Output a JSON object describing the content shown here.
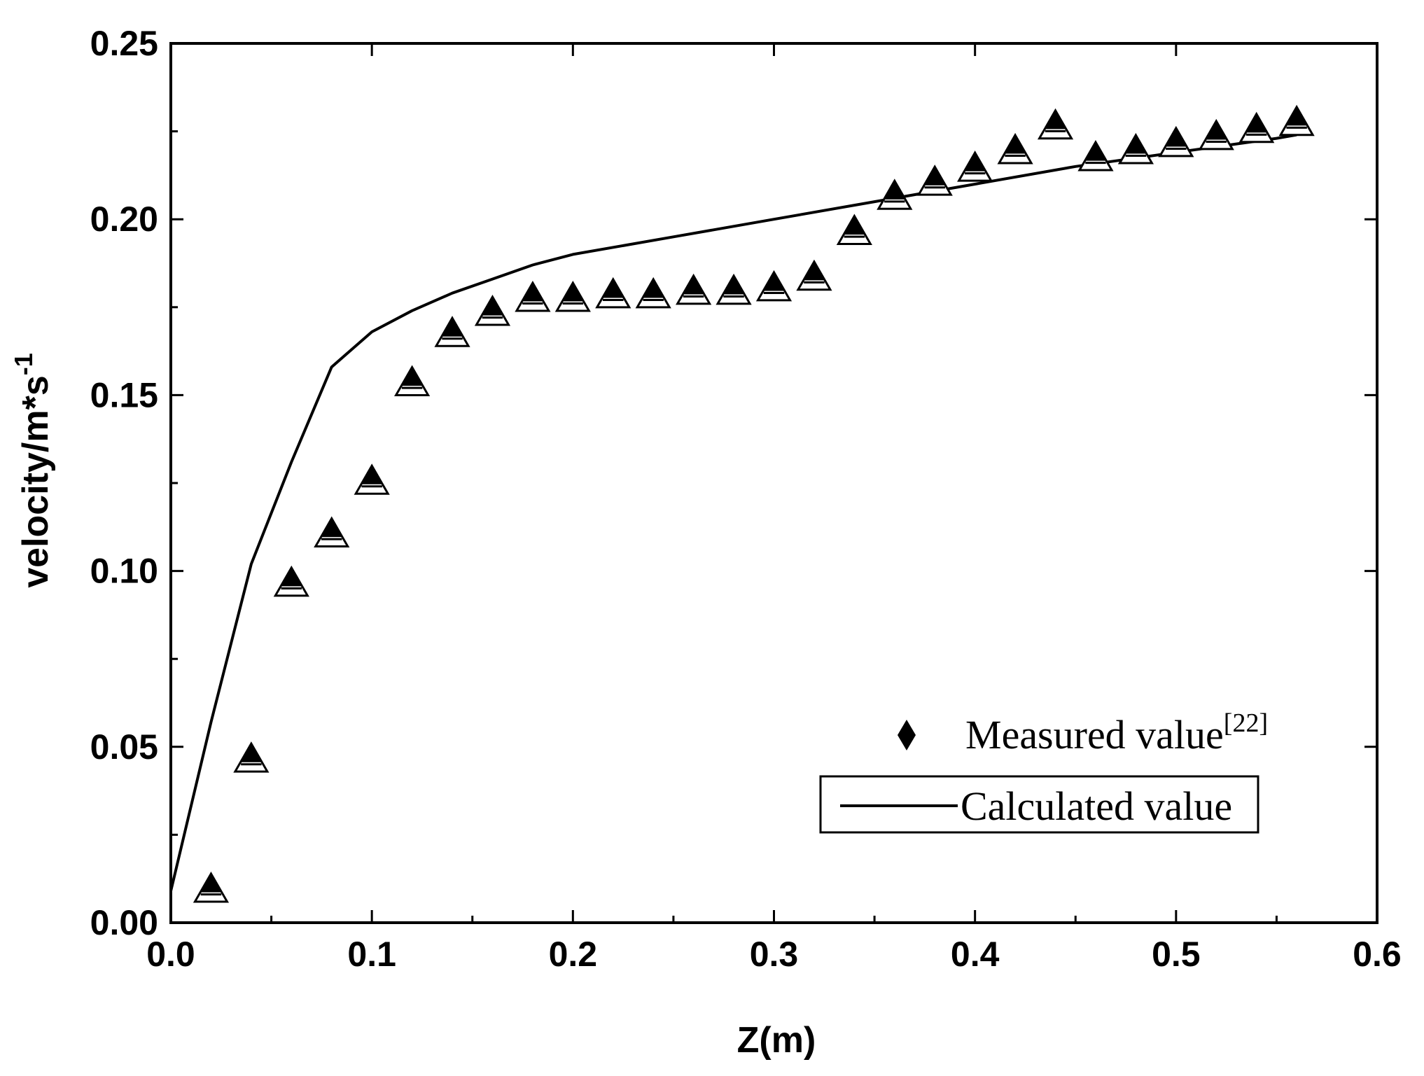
{
  "chart_data": {
    "type": "scatter",
    "xlabel": "Z(m)",
    "ylabel": "velocity/m*s",
    "ylabel_superscript": "-1",
    "xlim": [
      0.0,
      0.6
    ],
    "ylim": [
      0.0,
      0.25
    ],
    "xticks": [
      0.0,
      0.1,
      0.2,
      0.3,
      0.4,
      0.5,
      0.6
    ],
    "xtick_labels": [
      "0.0",
      "0.1",
      "0.2",
      "0.3",
      "0.4",
      "0.5",
      "0.6"
    ],
    "yticks": [
      0.0,
      0.05,
      0.1,
      0.15,
      0.2,
      0.25
    ],
    "ytick_labels": [
      "0.00",
      "0.05",
      "0.10",
      "0.15",
      "0.20",
      "0.25"
    ],
    "grid": false,
    "legend": {
      "position": "bottom-right",
      "entries": [
        {
          "label": "Measured value",
          "superscript": "[22]",
          "marker": "diamond-icon"
        },
        {
          "label": "Calculated value",
          "marker": "line"
        }
      ]
    },
    "series": [
      {
        "name": "Measured value",
        "kind": "scatter",
        "marker": "half-filled-triangle",
        "x": [
          0.02,
          0.04,
          0.06,
          0.08,
          0.1,
          0.12,
          0.14,
          0.16,
          0.18,
          0.2,
          0.22,
          0.24,
          0.26,
          0.28,
          0.3,
          0.32,
          0.34,
          0.36,
          0.38,
          0.4,
          0.42,
          0.44,
          0.46,
          0.48,
          0.5,
          0.52,
          0.54,
          0.56
        ],
        "y": [
          0.009,
          0.046,
          0.096,
          0.11,
          0.125,
          0.153,
          0.167,
          0.173,
          0.177,
          0.177,
          0.178,
          0.178,
          0.179,
          0.179,
          0.18,
          0.183,
          0.196,
          0.206,
          0.21,
          0.214,
          0.219,
          0.226,
          0.217,
          0.219,
          0.221,
          0.223,
          0.225,
          0.227
        ]
      },
      {
        "name": "Calculated value",
        "kind": "line",
        "x": [
          0.0,
          0.02,
          0.04,
          0.06,
          0.08,
          0.1,
          0.12,
          0.14,
          0.16,
          0.18,
          0.2,
          0.25,
          0.3,
          0.35,
          0.4,
          0.45,
          0.5,
          0.55,
          0.56
        ],
        "y": [
          0.009,
          0.057,
          0.102,
          0.131,
          0.158,
          0.168,
          0.174,
          0.179,
          0.183,
          0.187,
          0.19,
          0.195,
          0.2,
          0.205,
          0.21,
          0.215,
          0.219,
          0.223,
          0.224
        ]
      }
    ]
  }
}
